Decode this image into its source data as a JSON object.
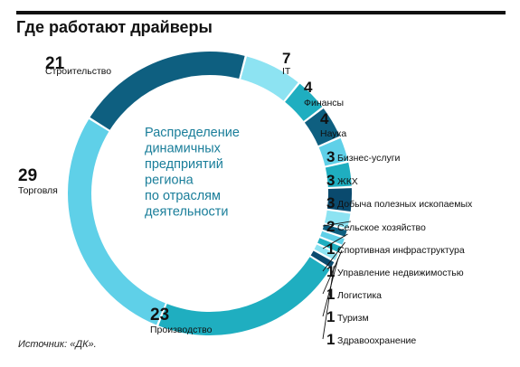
{
  "title": "Где работают драйверы",
  "source": "Источник: «ДК».",
  "center_text": [
    "Распределение",
    "динамичных",
    "предприятий",
    "региона",
    "по отраслям",
    "деятельности"
  ],
  "colors": {
    "accent_text": "#1a7e9a",
    "ring_light": "#5fd0e8",
    "ring_dark": "#0e5f80",
    "ring_mid": "#1faec0",
    "ring_pale": "#8de3f2"
  },
  "chart_data": {
    "type": "pie",
    "style": "donut",
    "unit_note": "",
    "slices": [
      {
        "label": "Строительство",
        "value": 21,
        "color": "#0e5f80"
      },
      {
        "label": "IT",
        "value": 7,
        "color": "#8de3f2"
      },
      {
        "label": "Финансы",
        "value": 4,
        "color": "#1faec0"
      },
      {
        "label": "Наука",
        "value": 4,
        "color": "#0e5f80"
      },
      {
        "label": "Бизнес-услуги",
        "value": 3,
        "color": "#5fd0e8"
      },
      {
        "label": "ЖКХ",
        "value": 3,
        "color": "#1faec0"
      },
      {
        "label": "Добыча полезных ископаемых",
        "value": 3,
        "color": "#0a4a6e"
      },
      {
        "label": "Сельское хозяйство",
        "value": 2,
        "color": "#8de3f2"
      },
      {
        "label": "Спортивная инфраструктура",
        "value": 1,
        "color": "#0e5f80"
      },
      {
        "label": "Управление недвижимостью",
        "value": 1,
        "color": "#5fd0e8"
      },
      {
        "label": "Логистика",
        "value": 1,
        "color": "#1faec0"
      },
      {
        "label": "Туризм",
        "value": 1,
        "color": "#8de3f2"
      },
      {
        "label": "Здравоохранение",
        "value": 1,
        "color": "#0a4a6e"
      },
      {
        "label": "Производство",
        "value": 23,
        "color": "#1faec0"
      },
      {
        "label": "Торговля",
        "value": 29,
        "color": "#5fd0e8"
      }
    ]
  }
}
